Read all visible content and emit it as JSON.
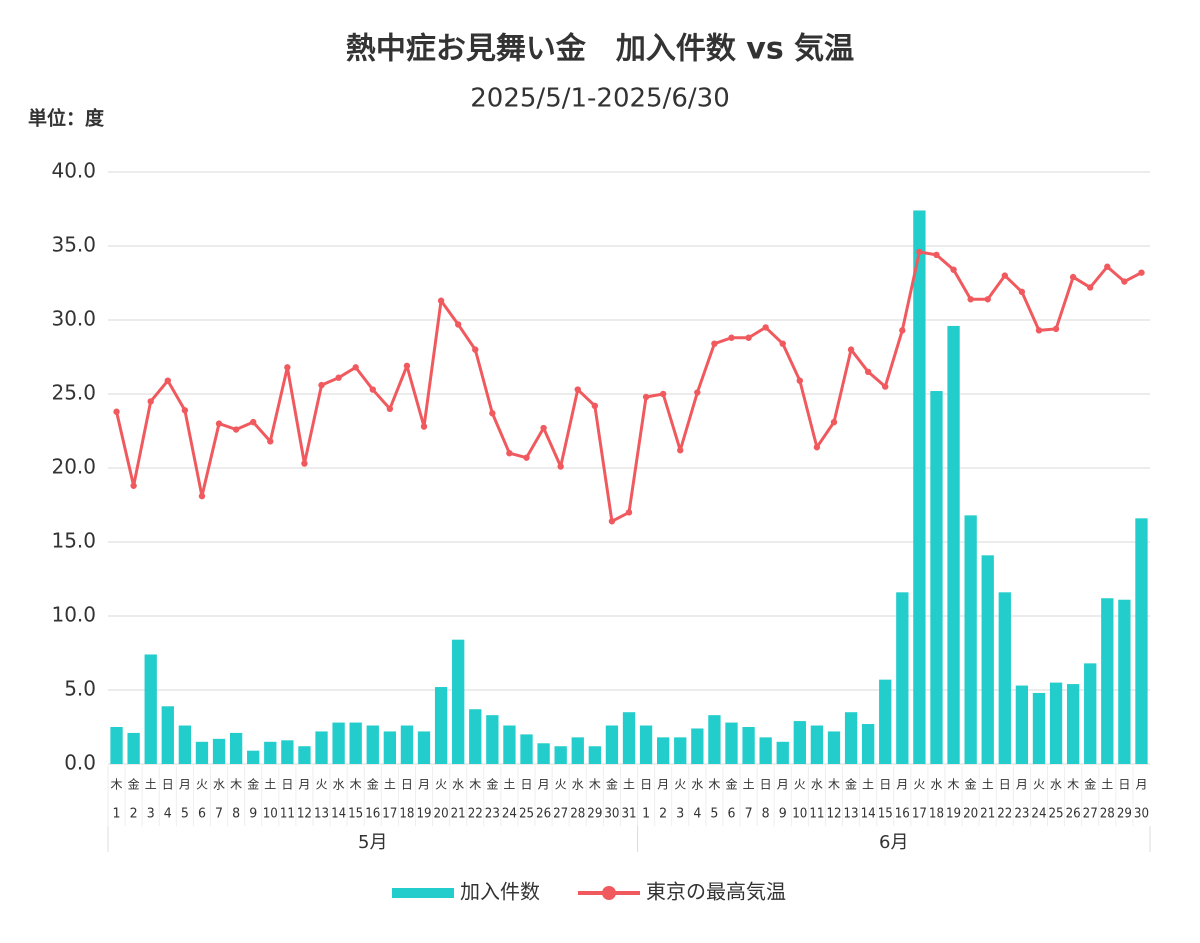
{
  "chart_data": {
    "type": "combo",
    "title": "熱中症お見舞い金　加入件数 vs 気温",
    "subtitle": "2025/5/1-2025/6/30",
    "unit_label": "単位：度",
    "months": [
      {
        "label": "5月",
        "days": [
          "1",
          "2",
          "3",
          "4",
          "5",
          "6",
          "7",
          "8",
          "9",
          "10",
          "11",
          "12",
          "13",
          "14",
          "15",
          "16",
          "17",
          "18",
          "19",
          "20",
          "21",
          "22",
          "23",
          "24",
          "25",
          "26",
          "27",
          "28",
          "29",
          "30",
          "31"
        ],
        "weekdays": [
          "木",
          "金",
          "土",
          "日",
          "月",
          "火",
          "水",
          "木",
          "金",
          "土",
          "日",
          "月",
          "火",
          "水",
          "木",
          "金",
          "土",
          "日",
          "月",
          "火",
          "水",
          "木",
          "金",
          "土",
          "日",
          "月",
          "火",
          "水",
          "木",
          "金",
          "土"
        ]
      },
      {
        "label": "6月",
        "days": [
          "1",
          "2",
          "3",
          "4",
          "5",
          "6",
          "7",
          "8",
          "9",
          "10",
          "11",
          "12",
          "13",
          "14",
          "15",
          "16",
          "17",
          "18",
          "19",
          "20",
          "21",
          "22",
          "23",
          "24",
          "25",
          "26",
          "27",
          "28",
          "29",
          "30"
        ],
        "weekdays": [
          "日",
          "月",
          "火",
          "水",
          "木",
          "金",
          "土",
          "日",
          "月",
          "火",
          "水",
          "木",
          "金",
          "土",
          "日",
          "月",
          "火",
          "水",
          "木",
          "金",
          "土",
          "日",
          "月",
          "火",
          "水",
          "木",
          "金",
          "土",
          "日",
          "月"
        ]
      }
    ],
    "series": [
      {
        "name": "加入件数",
        "type": "bar",
        "color": "#22cdcc",
        "values": [
          2.5,
          2.1,
          7.4,
          3.9,
          2.6,
          1.5,
          1.7,
          2.1,
          0.9,
          1.5,
          1.6,
          1.2,
          2.2,
          2.8,
          2.8,
          2.6,
          2.2,
          2.6,
          2.2,
          5.2,
          8.4,
          3.7,
          3.3,
          2.6,
          2.0,
          1.4,
          1.2,
          1.8,
          1.2,
          2.6,
          3.5,
          2.6,
          1.8,
          1.8,
          2.4,
          3.3,
          2.8,
          2.5,
          1.8,
          1.5,
          2.9,
          2.6,
          2.2,
          3.5,
          2.7,
          5.7,
          11.6,
          37.4,
          25.2,
          29.6,
          16.8,
          14.1,
          11.6,
          5.3,
          4.8,
          5.5,
          5.4,
          6.8,
          11.2,
          11.1,
          16.6
        ]
      },
      {
        "name": "東京の最高気温",
        "type": "line",
        "color": "#f05a5e",
        "values": [
          23.8,
          18.8,
          24.5,
          25.9,
          23.9,
          18.1,
          23.0,
          22.6,
          23.1,
          21.8,
          26.8,
          20.3,
          25.6,
          26.1,
          26.8,
          25.3,
          24.0,
          26.9,
          22.8,
          31.3,
          29.7,
          28.0,
          23.7,
          21.0,
          20.7,
          22.7,
          20.1,
          25.3,
          24.2,
          16.4,
          17.0,
          24.8,
          25.0,
          21.2,
          25.1,
          28.4,
          28.8,
          28.8,
          29.5,
          28.4,
          25.9,
          21.4,
          23.1,
          28.0,
          26.5,
          25.5,
          29.3,
          34.6,
          34.4,
          33.4,
          31.4,
          31.4,
          33.0,
          31.9,
          29.3,
          29.4,
          32.9,
          32.2,
          33.6,
          32.6,
          33.2
        ]
      }
    ],
    "ylim": [
      0,
      40
    ],
    "yticks": [
      {
        "value": 0,
        "label": "0.0"
      },
      {
        "value": 5,
        "label": "5.0"
      },
      {
        "value": 10,
        "label": "10.0"
      },
      {
        "value": 15,
        "label": "15.0"
      },
      {
        "value": 20,
        "label": "20.0"
      },
      {
        "value": 25,
        "label": "25.0"
      },
      {
        "value": 30,
        "label": "30.0"
      },
      {
        "value": 35,
        "label": "35.0"
      },
      {
        "value": 40,
        "label": "40.0"
      }
    ],
    "grid": true
  }
}
